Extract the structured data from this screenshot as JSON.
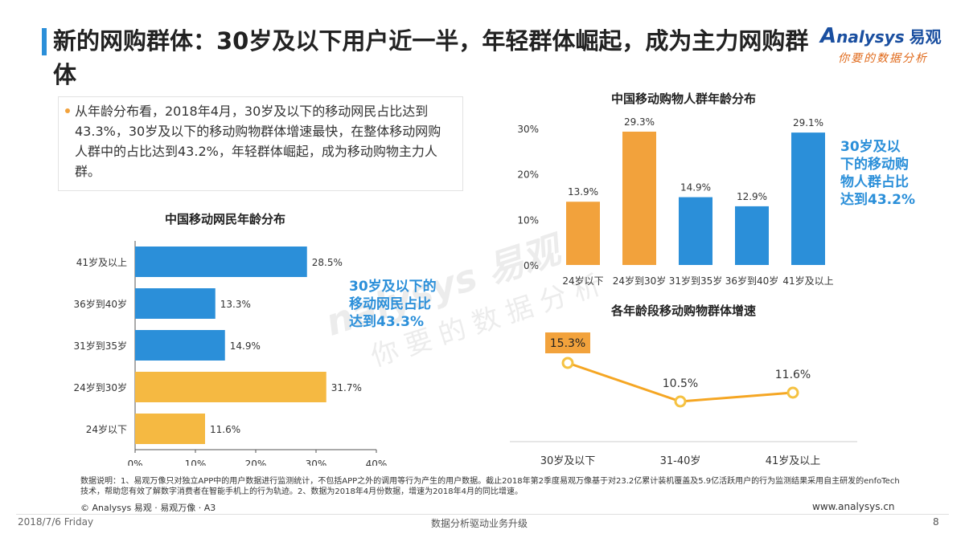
{
  "header": {
    "title": "新的网购群体：30岁及以下用户近一半，年轻群体崛起，成为主力网购群体",
    "logo_brand": "nalysys",
    "logo_letter": "A",
    "logo_cn": "易观",
    "logo_tagline": "你要的数据分析"
  },
  "bullet": {
    "text": "从年龄分布看，2018年4月，30岁及以下的移动网民占比达到43.3%，30岁及以下的移动购物群体增速最快，在整体移动网购人群中的占比达到43.2%，年轻群体崛起，成为移动购物主力人群。"
  },
  "watermark": {
    "top": "nalysys 易观",
    "bottom": "你要的数据分析"
  },
  "colors": {
    "blue": "#2b8fd9",
    "orange": "#f2a23c",
    "yellow": "#f5b942",
    "line": "#f5a623"
  },
  "chart_data": [
    {
      "type": "bar",
      "orientation": "horizontal",
      "title": "中国移动网民年龄分布",
      "categories": [
        "41岁及以上",
        "36岁到40岁",
        "31岁到35岁",
        "24岁到30岁",
        "24岁以下"
      ],
      "values": [
        28.5,
        13.3,
        14.9,
        31.7,
        11.6
      ],
      "value_labels": [
        "28.5%",
        "13.3%",
        "14.9%",
        "31.7%",
        "11.6%"
      ],
      "bar_colors": [
        "#2b8fd9",
        "#2b8fd9",
        "#2b8fd9",
        "#f5b942",
        "#f5b942"
      ],
      "xlim": [
        0,
        40
      ],
      "xticks": [
        "0%",
        "10%",
        "20%",
        "30%",
        "40%"
      ],
      "grid": false,
      "callout": "30岁及以下的移动网民占比达到43.3%",
      "callout_lines": [
        "30岁及以下的",
        "移动网民占比",
        "达到43.3%"
      ]
    },
    {
      "type": "bar",
      "orientation": "vertical",
      "title": "中国移动购物人群年龄分布",
      "categories": [
        "24岁以下",
        "24岁到30岁",
        "31岁到35岁",
        "36岁到40岁",
        "41岁及以上"
      ],
      "values": [
        13.9,
        29.3,
        14.9,
        12.9,
        29.1
      ],
      "value_labels": [
        "13.9%",
        "29.3%",
        "14.9%",
        "12.9%",
        "29.1%"
      ],
      "bar_colors": [
        "#f2a23c",
        "#f2a23c",
        "#2b8fd9",
        "#2b8fd9",
        "#2b8fd9"
      ],
      "ylim": [
        0,
        30
      ],
      "yticks": [
        "0%",
        "10%",
        "20%",
        "30%"
      ],
      "grid": false,
      "callout": "30岁及以下的移动购物人群占比达到43.2%",
      "callout_lines": [
        "30岁及以",
        "下的移动购",
        "物人群占比",
        "达到43.2%"
      ]
    },
    {
      "type": "line",
      "title": "各年龄段移动购物群体增速",
      "categories": [
        "30岁及以下",
        "31-40岁",
        "41岁及以上"
      ],
      "values": [
        15.3,
        10.5,
        11.6
      ],
      "value_labels": [
        "15.3%",
        "10.5%",
        "11.6%"
      ],
      "highlight_index": 0,
      "grid": false
    }
  ],
  "footer": {
    "footnote": "数据说明：1、易观万像只对独立APP中的用户数据进行监测统计，不包括APP之外的调用等行为产生的用户数据。截止2018年第2季度易观万像基于对23.2亿累计装机覆盖及5.9亿活跃用户的行为监测结果采用自主研发的enfoTech技术，帮助您有效了解数字消费者在智能手机上的行为轨迹。2、数据为2018年4月份数据，增速为2018年4月的同比增速。",
    "copyright": "© Analysys 易观 · 易观万像 · A3",
    "website": "www.analysys.cn",
    "date": "2018/7/6 Friday",
    "slogan": "数据分析驱动业务升级",
    "page": "8"
  }
}
